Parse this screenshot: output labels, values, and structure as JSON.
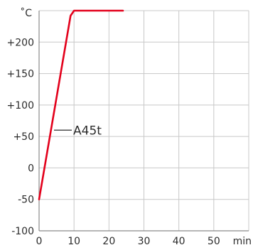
{
  "chart_data": {
    "type": "line",
    "title": "",
    "xlabel": "min",
    "ylabel": "˚C",
    "xlim": [
      0,
      60
    ],
    "ylim": [
      -100,
      250
    ],
    "x_ticks": [
      0,
      10,
      20,
      30,
      40,
      50
    ],
    "x_tick_labels": [
      "0",
      "10",
      "20",
      "30",
      "40",
      "50"
    ],
    "y_ticks": [
      -100,
      -50,
      0,
      50,
      100,
      150,
      200
    ],
    "y_tick_labels": [
      "-100",
      "-50",
      "0",
      "+50",
      "+100",
      "+150",
      "+200"
    ],
    "grid": true,
    "line_color": "#e3001b",
    "grid_color": "#c8c8c8",
    "series": [
      {
        "name": "A45t",
        "x": [
          0,
          9.0,
          10.0,
          24.0
        ],
        "y": [
          -50,
          242,
          250,
          250
        ]
      }
    ]
  }
}
